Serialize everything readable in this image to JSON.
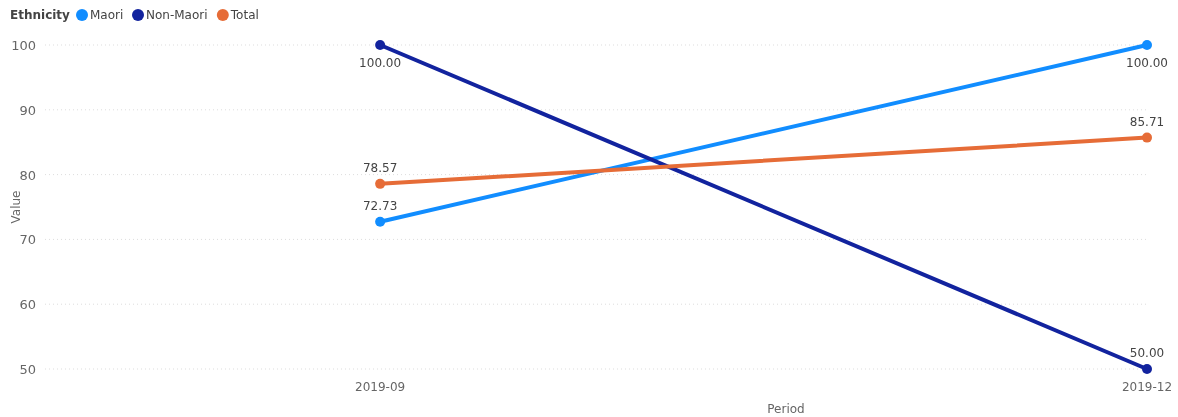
{
  "chart_data": {
    "type": "line",
    "xlabel": "Period",
    "ylabel": "Value",
    "legend_title": "Ethnicity",
    "categories": [
      "2019-09",
      "2019-12"
    ],
    "series": [
      {
        "name": "Maori",
        "color": "#118dff",
        "values": [
          72.73,
          100
        ],
        "value_labels": [
          "72.73",
          "100.00"
        ]
      },
      {
        "name": "Non-Maori",
        "color": "#12239e",
        "values": [
          100,
          50
        ],
        "value_labels": [
          "100.00",
          "50.00"
        ]
      },
      {
        "name": "Total",
        "color": "#e66c37",
        "values": [
          78.57,
          85.71
        ],
        "value_labels": [
          "78.57",
          "85.71"
        ]
      }
    ],
    "ylim": [
      50,
      100
    ],
    "yticks": [
      50,
      60,
      70,
      80,
      90,
      100
    ],
    "grid": "y",
    "legend": "top left",
    "marker": "circle",
    "line_style": "solid"
  }
}
